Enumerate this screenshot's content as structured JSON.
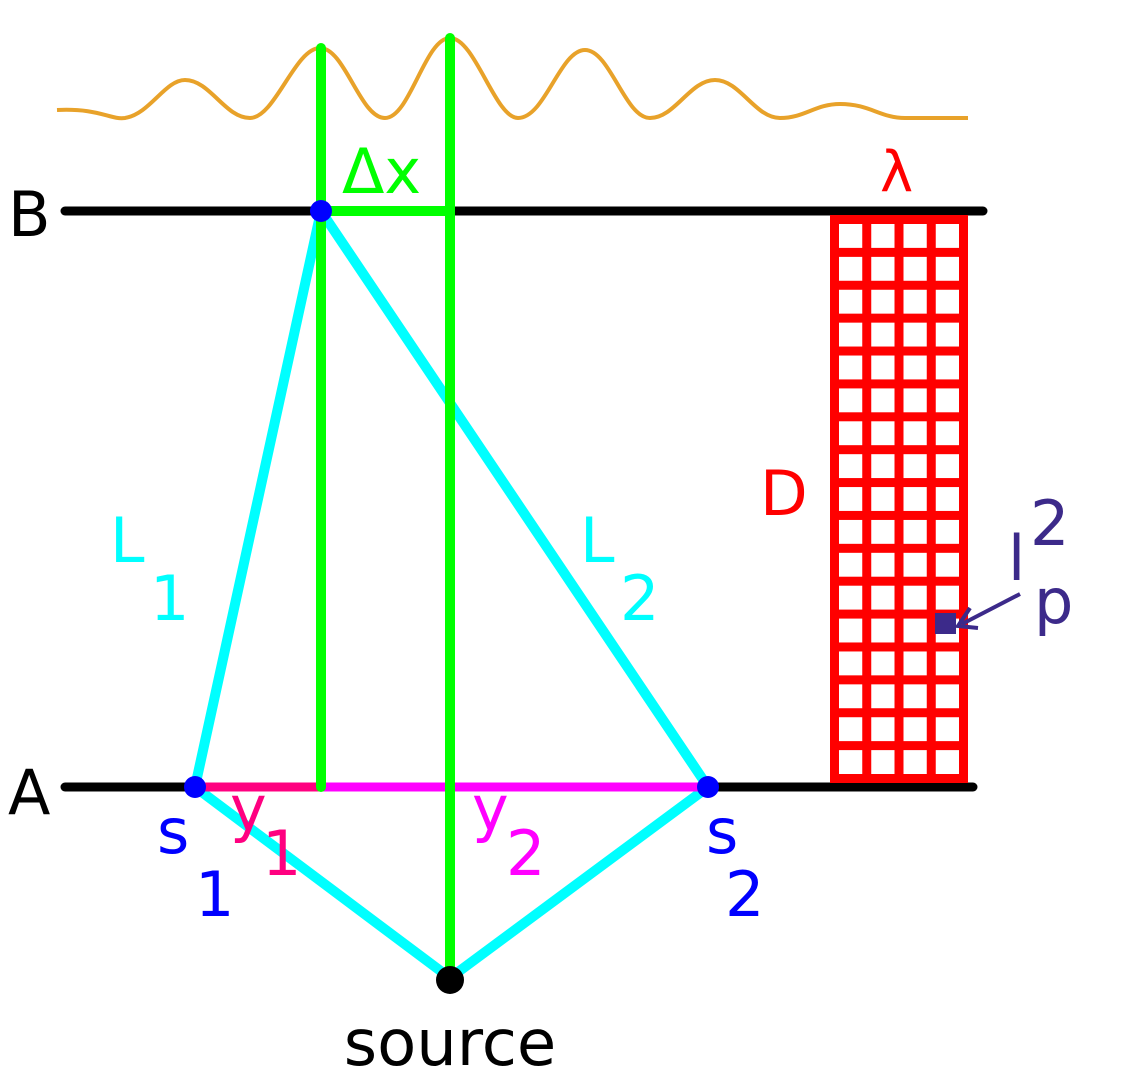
{
  "labels": {
    "point_b": "B",
    "point_a": "A",
    "delta_x": "Δx",
    "lambda": "λ",
    "d": "D",
    "l_main": "L",
    "l_sub_1": "1",
    "l_sub_2": "2",
    "s_main": "s",
    "s_sub_1": "1",
    "s_sub_2": "2",
    "y_main": "y",
    "y_sub_1": "1",
    "y_sub_2": "2",
    "lp_main": "l",
    "lp_sup": "2",
    "lp_sub": "p",
    "source": "source"
  },
  "colors": {
    "wave": "#e8a22a",
    "line": "#000000",
    "green": "#00ff00",
    "cyan": "#00ffff",
    "magenta": "#ff00ff",
    "pink": "#ff0080",
    "red": "#ff0000",
    "blue": "#0000ff",
    "indigo": "#3c2a8a"
  }
}
